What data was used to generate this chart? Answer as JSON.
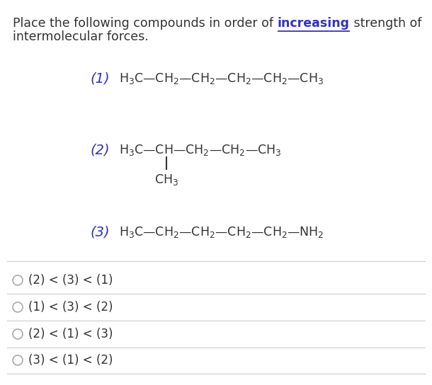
{
  "title_color": "#333333",
  "underline_color": "#3333bb",
  "number_color": "#3333bb",
  "compound_color": "#333333",
  "bg_color": "#ffffff",
  "choices": [
    "(2) < (3) < (1)",
    "(1) < (3) < (2)",
    "(2) < (1) < (3)",
    "(3) < (1) < (2)"
  ],
  "divider_color": "#cccccc",
  "circle_color": "#aaaaaa",
  "font_size_title": 12.5,
  "font_size_number": 14,
  "font_size_compound": 12.5,
  "font_size_choice": 12
}
